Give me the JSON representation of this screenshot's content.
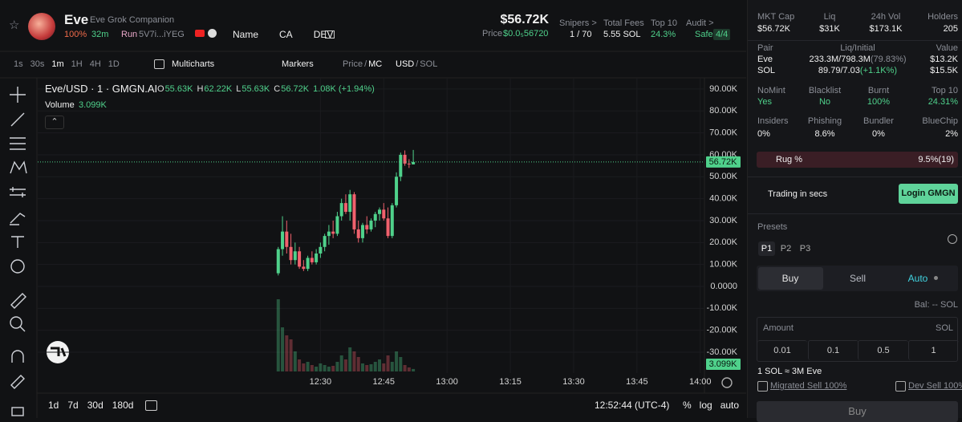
{
  "header": {
    "name": "Eve",
    "subtitle": "Eve Grok Companion",
    "progress": "100%",
    "age": "32m",
    "run": "Run",
    "address": "5V7i...iYEG",
    "links": [
      "Name",
      "CA",
      "DEV"
    ],
    "market_cap": "$56.72K",
    "price_label": "Price",
    "price": "$0.0₅56720",
    "snipers_label": "Snipers >",
    "snipers": "1 / 70",
    "fees_label": "Total Fees",
    "fees": "5.55 SOL",
    "top10_label": "Top 10",
    "top10": "24.3%",
    "audit_label": "Audit >",
    "audit": "Safe",
    "audit_score": "4/4"
  },
  "toolbar": {
    "intervals": [
      "1s",
      "30s",
      "1m",
      "1H",
      "4H",
      "1D"
    ],
    "multicharts": "Multicharts",
    "markers": "Markers",
    "price_toggle": [
      "Price",
      "/",
      "MC"
    ],
    "currency_toggle": [
      "USD",
      "/",
      "SOL"
    ]
  },
  "legend": {
    "symbol": "Eve/USD · 1 · GMGN.AI",
    "ohlc": [
      {
        "key": "O",
        "value": "55.63K"
      },
      {
        "key": "H",
        "value": "62.22K"
      },
      {
        "key": "L",
        "value": "55.63K"
      },
      {
        "key": "C",
        "value": "56.72K"
      }
    ],
    "change": "1.08K (+1.94%)",
    "volume_label": "Volume",
    "volume": "3.099K"
  },
  "chart_data": {
    "type": "candlestick",
    "up_color": "#4fd18b",
    "down_color": "#f0616d",
    "grid": true,
    "xlim": [
      "11:23",
      "14:01"
    ],
    "xticks": [
      "12:30",
      "12:45",
      "13:00",
      "13:15",
      "13:30",
      "13:45",
      "14:00"
    ],
    "ylim": [
      -39500,
      92900
    ],
    "yticks": [
      {
        "value": 90000,
        "label": "90.00K"
      },
      {
        "value": 80000,
        "label": "80.00K"
      },
      {
        "value": 70000,
        "label": "70.00K"
      },
      {
        "value": 60000,
        "label": "60.00K"
      },
      {
        "value": 50000,
        "label": "50.00K"
      },
      {
        "value": 40000,
        "label": "40.00K"
      },
      {
        "value": 30000,
        "label": "30.00K"
      },
      {
        "value": 20000,
        "label": "20.00K"
      },
      {
        "value": 10000,
        "label": "10.00K"
      },
      {
        "value": 0,
        "label": "0.0000"
      },
      {
        "value": -10000,
        "label": "-10.00K"
      },
      {
        "value": -20000,
        "label": "-20.00K"
      },
      {
        "value": -30000,
        "label": "-30.00K"
      }
    ],
    "candles": [
      {
        "t": "12:20",
        "open": 6000,
        "high": 18000,
        "low": 5000,
        "close": 17000
      },
      {
        "t": "12:21",
        "open": 17000,
        "high": 32000,
        "low": 14000,
        "close": 25000
      },
      {
        "t": "12:22",
        "open": 25000,
        "high": 30000,
        "low": 15000,
        "close": 18000
      },
      {
        "t": "12:23",
        "open": 18000,
        "high": 24000,
        "low": 10000,
        "close": 12000
      },
      {
        "t": "12:24",
        "open": 12000,
        "high": 20000,
        "low": 10000,
        "close": 16000
      },
      {
        "t": "12:25",
        "open": 16000,
        "high": 18000,
        "low": 8000,
        "close": 9000
      },
      {
        "t": "12:26",
        "open": 9000,
        "high": 12000,
        "low": 7000,
        "close": 8000
      },
      {
        "t": "12:27",
        "open": 8000,
        "high": 14000,
        "low": 7000,
        "close": 13000
      },
      {
        "t": "12:28",
        "open": 13000,
        "high": 16000,
        "low": 10000,
        "close": 11000
      },
      {
        "t": "12:29",
        "open": 11000,
        "high": 17000,
        "low": 10000,
        "close": 15000
      },
      {
        "t": "12:30",
        "open": 15000,
        "high": 20000,
        "low": 13000,
        "close": 18000
      },
      {
        "t": "12:31",
        "open": 18000,
        "high": 24000,
        "low": 16000,
        "close": 23000
      },
      {
        "t": "12:32",
        "open": 23000,
        "high": 28000,
        "low": 19000,
        "close": 25000
      },
      {
        "t": "12:33",
        "open": 25000,
        "high": 30000,
        "low": 22000,
        "close": 24000
      },
      {
        "t": "12:34",
        "open": 24000,
        "high": 34000,
        "low": 23000,
        "close": 32000
      },
      {
        "t": "12:35",
        "open": 32000,
        "high": 40000,
        "low": 30000,
        "close": 38000
      },
      {
        "t": "12:36",
        "open": 38000,
        "high": 42000,
        "low": 33000,
        "close": 34000
      },
      {
        "t": "12:37",
        "open": 34000,
        "high": 44000,
        "low": 30000,
        "close": 42000
      },
      {
        "t": "12:38",
        "open": 42000,
        "high": 43000,
        "low": 24000,
        "close": 26000
      },
      {
        "t": "12:39",
        "open": 26000,
        "high": 30000,
        "low": 20000,
        "close": 22000
      },
      {
        "t": "12:40",
        "open": 22000,
        "high": 29000,
        "low": 20000,
        "close": 28000
      },
      {
        "t": "12:41",
        "open": 28000,
        "high": 32000,
        "low": 24000,
        "close": 26000
      },
      {
        "t": "12:42",
        "open": 26000,
        "high": 31000,
        "low": 25000,
        "close": 30000
      },
      {
        "t": "12:43",
        "open": 30000,
        "high": 34000,
        "low": 27000,
        "close": 33000
      },
      {
        "t": "12:44",
        "open": 33000,
        "high": 36000,
        "low": 30000,
        "close": 35000
      },
      {
        "t": "12:45",
        "open": 35000,
        "high": 38000,
        "low": 30000,
        "close": 31000
      },
      {
        "t": "12:46",
        "open": 31000,
        "high": 36000,
        "low": 22000,
        "close": 23000
      },
      {
        "t": "12:47",
        "open": 23000,
        "high": 38000,
        "low": 22000,
        "close": 37000
      },
      {
        "t": "12:48",
        "open": 37000,
        "high": 52000,
        "low": 36000,
        "close": 50000
      },
      {
        "t": "12:49",
        "open": 50000,
        "high": 61000,
        "low": 48000,
        "close": 60000
      },
      {
        "t": "12:50",
        "open": 60000,
        "high": 62000,
        "low": 55000,
        "close": 56000
      },
      {
        "t": "12:51",
        "open": 56000,
        "high": 58000,
        "low": 54000,
        "close": 55630
      },
      {
        "t": "12:52",
        "open": 55630,
        "high": 62220,
        "low": 55630,
        "close": 56720
      }
    ],
    "volumes": [
      90000,
      55000,
      45000,
      40000,
      25000,
      15000,
      10000,
      12000,
      8000,
      6000,
      10000,
      8000,
      6000,
      7000,
      12000,
      20000,
      15000,
      30000,
      25000,
      18000,
      10000,
      8000,
      9000,
      12000,
      15000,
      10000,
      20000,
      12000,
      25000,
      18000,
      8000,
      5000,
      3099
    ],
    "last_price": {
      "value": 56720,
      "label": "56.72K"
    },
    "last_volume": {
      "value": 3099,
      "label": "3.099K"
    }
  },
  "footer": {
    "ranges": [
      "1d",
      "7d",
      "30d",
      "180d"
    ],
    "clock": "12:52:44 (UTC-4)",
    "options": [
      "%",
      "log",
      "auto"
    ]
  },
  "panel": {
    "stats": [
      {
        "label": "MKT Cap",
        "value": "$56.72K"
      },
      {
        "label": "Liq",
        "value": "$31K"
      },
      {
        "label": "24h Vol",
        "value": "$173.1K"
      },
      {
        "label": "Holders",
        "value": "205"
      }
    ],
    "pair_header": [
      "Pair",
      "Liq/Initial",
      "Value"
    ],
    "pairs": [
      {
        "name": "Eve",
        "liq": "233.3M/798.3M",
        "pct": "(79.83%)",
        "value": "$13.2K"
      },
      {
        "name": "SOL",
        "liq": "89.79/7.03",
        "pct": "(+1.1K%)",
        "value": "$15.5K"
      }
    ],
    "security": [
      {
        "label": "NoMint",
        "value": "Yes"
      },
      {
        "label": "Blacklist",
        "value": "No"
      },
      {
        "label": "Burnt",
        "value": "100%"
      },
      {
        "label": "Top 10",
        "value": "24.31%"
      }
    ],
    "holders": [
      {
        "label": "Insiders",
        "value": "0%"
      },
      {
        "label": "Phishing",
        "value": "8.6%"
      },
      {
        "label": "Bundler",
        "value": "0%"
      },
      {
        "label": "BlueChip",
        "value": "2%"
      }
    ],
    "rug_label": "Rug %",
    "rug_value": "9.5%(19)",
    "trading": "Trading in secs",
    "login": "Login GMGN",
    "presets_label": "Presets",
    "presets": [
      "P1",
      "P2",
      "P3"
    ],
    "tabs": [
      "Buy",
      "Sell",
      "Auto"
    ],
    "balance": "Bal: -- SOL",
    "amount": "Amount",
    "amount_unit": "SOL",
    "quick": [
      "0.01",
      "0.1",
      "0.5",
      "1"
    ],
    "rate": "1 SOL ≈ 3M Eve",
    "checks": [
      "Migrated Sell 100%",
      "Dev Sell 100%"
    ],
    "buy": "Buy"
  }
}
